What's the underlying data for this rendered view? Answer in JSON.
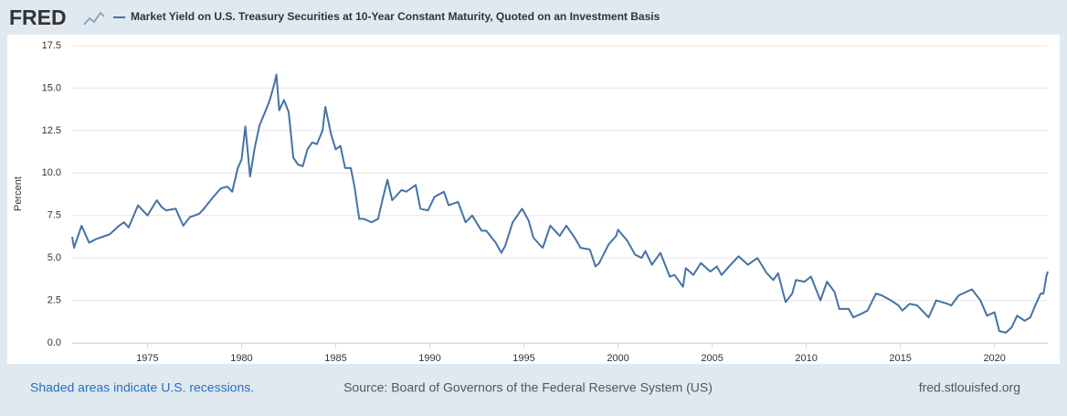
{
  "logo": "FRED",
  "note": "Shaded areas indicate U.S. recessions.",
  "source": "Source: Board of Governors of the Federal Reserve System (US)",
  "site": "fred.stlouisfed.org",
  "chart_data": {
    "type": "line",
    "ylabel": "Percent",
    "xlim": [
      1971,
      2022.83
    ],
    "xticks": [
      1975,
      1980,
      1985,
      1990,
      1995,
      2000,
      2005,
      2010,
      2015,
      2020
    ],
    "ylim": [
      0,
      17.5
    ],
    "yticks": [
      {
        "value": 0,
        "label": "0.0"
      },
      2.5,
      {
        "value": 5,
        "label": "5.0"
      },
      7.5,
      {
        "value": 10,
        "label": "10.0"
      },
      12.5,
      {
        "value": 15,
        "label": "15.0"
      },
      17.5
    ],
    "grid": true,
    "x": [
      1971.0,
      1971.1,
      1971.5,
      1971.9,
      1972.25,
      1972.75,
      1973.0,
      1973.5,
      1973.75,
      1974.0,
      1974.5,
      1974.75,
      1975.0,
      1975.5,
      1975.75,
      1976.0,
      1976.5,
      1976.9,
      1977.25,
      1977.75,
      1978.0,
      1978.5,
      1978.9,
      1979.25,
      1979.5,
      1979.8,
      1980.0,
      1980.2,
      1980.45,
      1980.7,
      1980.95,
      1981.25,
      1981.5,
      1981.75,
      1981.85,
      1982.0,
      1982.25,
      1982.5,
      1982.75,
      1983.0,
      1983.25,
      1983.5,
      1983.75,
      1984.0,
      1984.3,
      1984.45,
      1984.75,
      1985.0,
      1985.25,
      1985.5,
      1985.8,
      1986.0,
      1986.25,
      1986.5,
      1986.9,
      1987.25,
      1987.5,
      1987.75,
      1988.0,
      1988.5,
      1988.75,
      1989.0,
      1989.25,
      1989.5,
      1989.9,
      1990.25,
      1990.75,
      1991.0,
      1991.5,
      1991.9,
      1992.25,
      1992.75,
      1993.0,
      1993.5,
      1993.8,
      1994.0,
      1994.4,
      1994.9,
      1995.25,
      1995.5,
      1995.9,
      1996.0,
      1996.4,
      1996.9,
      1997.25,
      1997.75,
      1998.0,
      1998.5,
      1998.8,
      1999.0,
      1999.5,
      1999.9,
      2000.0,
      2000.5,
      2000.9,
      2001.25,
      2001.45,
      2001.8,
      2002.25,
      2002.75,
      2003.0,
      2003.45,
      2003.6,
      2004.0,
      2004.4,
      2004.9,
      2005.25,
      2005.5,
      2005.9,
      2006.4,
      2006.9,
      2007.4,
      2007.9,
      2008.25,
      2008.5,
      2008.9,
      2009.25,
      2009.45,
      2009.9,
      2010.25,
      2010.75,
      2011.1,
      2011.5,
      2011.75,
      2012.25,
      2012.5,
      2012.9,
      2013.25,
      2013.7,
      2014.0,
      2014.5,
      2014.9,
      2015.1,
      2015.5,
      2015.9,
      2016.5,
      2016.9,
      2017.5,
      2017.7,
      2018.1,
      2018.8,
      2019.25,
      2019.6,
      2020.0,
      2020.25,
      2020.6,
      2020.9,
      2021.2,
      2021.6,
      2021.9,
      2022.2,
      2022.45,
      2022.6,
      2022.75,
      2022.83
    ],
    "series": [
      {
        "name": "Market Yield on U.S. Treasury Securities at 10-Year Constant Maturity, Quoted on an Investment Basis",
        "color": "#4572a7",
        "values": [
          6.24,
          5.6,
          6.9,
          5.9,
          6.1,
          6.3,
          6.4,
          6.9,
          7.1,
          6.8,
          8.1,
          7.8,
          7.5,
          8.4,
          8.0,
          7.8,
          7.9,
          6.9,
          7.4,
          7.6,
          7.9,
          8.6,
          9.1,
          9.2,
          8.9,
          10.3,
          10.8,
          12.75,
          9.8,
          11.5,
          12.8,
          13.6,
          14.3,
          15.3,
          15.8,
          13.7,
          14.3,
          13.6,
          10.9,
          10.5,
          10.4,
          11.4,
          11.8,
          11.7,
          12.5,
          13.9,
          12.3,
          11.4,
          11.6,
          10.3,
          10.3,
          9.2,
          7.3,
          7.3,
          7.1,
          7.3,
          8.5,
          9.6,
          8.4,
          9.0,
          8.9,
          9.1,
          9.3,
          7.9,
          7.8,
          8.6,
          8.9,
          8.1,
          8.3,
          7.1,
          7.5,
          6.6,
          6.6,
          5.9,
          5.3,
          5.7,
          7.1,
          7.9,
          7.2,
          6.2,
          5.7,
          5.6,
          6.9,
          6.3,
          6.9,
          6.1,
          5.6,
          5.5,
          4.5,
          4.7,
          5.8,
          6.3,
          6.66,
          6.0,
          5.2,
          5.0,
          5.4,
          4.6,
          5.3,
          3.9,
          4.0,
          3.3,
          4.4,
          4.0,
          4.7,
          4.2,
          4.5,
          4.0,
          4.5,
          5.1,
          4.6,
          5.0,
          4.1,
          3.7,
          4.1,
          2.4,
          2.9,
          3.7,
          3.6,
          3.9,
          2.5,
          3.6,
          3.0,
          2.0,
          2.0,
          1.5,
          1.7,
          1.9,
          2.9,
          2.8,
          2.5,
          2.2,
          1.9,
          2.3,
          2.2,
          1.5,
          2.5,
          2.3,
          2.2,
          2.8,
          3.15,
          2.5,
          1.6,
          1.8,
          0.7,
          0.6,
          0.9,
          1.6,
          1.3,
          1.5,
          2.3,
          2.9,
          2.9,
          3.9,
          4.2
        ]
      }
    ]
  }
}
